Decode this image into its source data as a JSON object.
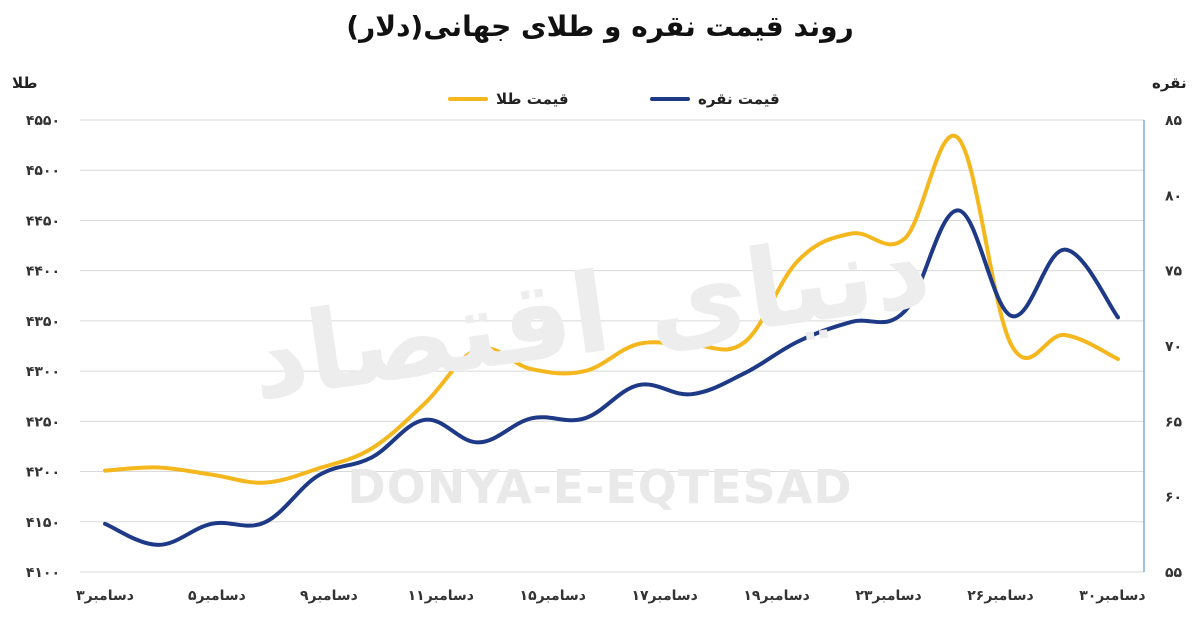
{
  "chart_data": {
    "type": "line",
    "title": "روند قیمت نقره و طلای جهانی(دلار)",
    "y_left_label": "طلا",
    "y_right_label": "نقره",
    "categories": [
      "۳دسامبر",
      "۵دسامبر",
      "۹دسامبر",
      "۱۱دسامبر",
      "۱۵دسامبر",
      "۱۷دسامبر",
      "۱۹دسامبر",
      "۲۳دسامبر",
      "۲۶دسامبر",
      "۳۰دسامبر"
    ],
    "x": [
      0,
      1,
      2,
      3,
      4,
      5,
      6,
      7,
      8,
      9,
      10,
      11,
      12,
      13,
      14,
      15,
      16,
      17,
      18,
      19
    ],
    "y_left_ticks": [
      "۴۱۰۰",
      "۴۱۵۰",
      "۴۲۰۰",
      "۴۲۵۰",
      "۴۳۰۰",
      "۴۳۵۰",
      "۴۴۰۰",
      "۴۴۵۰",
      "۴۵۰۰",
      "۴۵۵۰"
    ],
    "y_right_ticks": [
      "۵۵",
      "۶۰",
      "۶۵",
      "۷۰",
      "۷۵",
      "۸۰",
      "۸۵"
    ],
    "y_left_range": [
      4100,
      4550
    ],
    "y_right_range": [
      55,
      85
    ],
    "series": [
      {
        "name": "قیمت طلا",
        "axis": "left",
        "color": "#F5B71E",
        "values": [
          4201,
          4204,
          4197,
          4189,
          4203,
          4223,
          4268,
          4322,
          4302,
          4300,
          4327,
          4326,
          4329,
          4410,
          4437,
          4432,
          4532,
          4326,
          4336,
          4312
        ]
      },
      {
        "name": "قیمت نقره",
        "axis": "right",
        "color": "#1E3A87",
        "values": [
          58.2,
          56.8,
          58.2,
          58.3,
          61.4,
          62.6,
          65.1,
          63.6,
          65.2,
          65.2,
          67.4,
          66.8,
          68.2,
          70.3,
          71.6,
          72.3,
          79.0,
          72.0,
          76.4,
          71.9
        ]
      }
    ],
    "grid": true,
    "legend_position": "top-center"
  },
  "watermark": {
    "latin": "DONYA-E-EQTESAD",
    "persian": "دنیای اقتصاد"
  }
}
